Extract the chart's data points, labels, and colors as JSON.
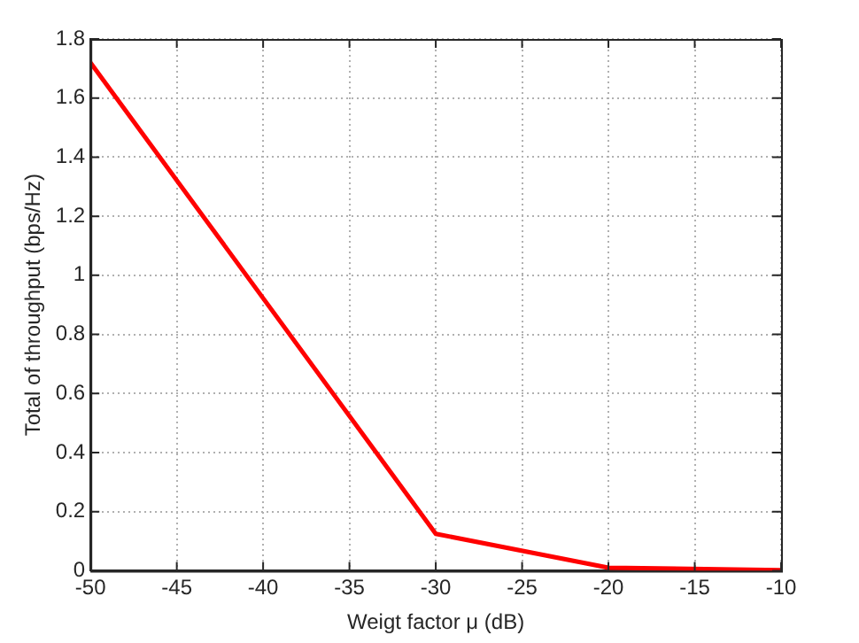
{
  "chart_data": {
    "type": "line",
    "xlabel": "Weigt factor μ (dB)",
    "ylabel": "Total of throughput (bps/Hz)",
    "x": [
      -50,
      -30,
      -20,
      -10
    ],
    "series": [
      {
        "color": "#ff0000",
        "values": [
          1.72,
          0.125,
          0.01,
          0.002
        ]
      }
    ],
    "xlim": [
      -50,
      -10
    ],
    "xticks": [
      -50,
      -45,
      -40,
      -35,
      -30,
      -25,
      -20,
      -15,
      -10
    ],
    "ylim": [
      0,
      1.8
    ],
    "yticks": [
      0,
      0.2,
      0.4,
      0.6,
      0.8,
      1,
      1.2,
      1.4,
      1.6,
      1.8
    ],
    "grid": true,
    "legend": false,
    "marker": "none",
    "line_style": "solid"
  }
}
